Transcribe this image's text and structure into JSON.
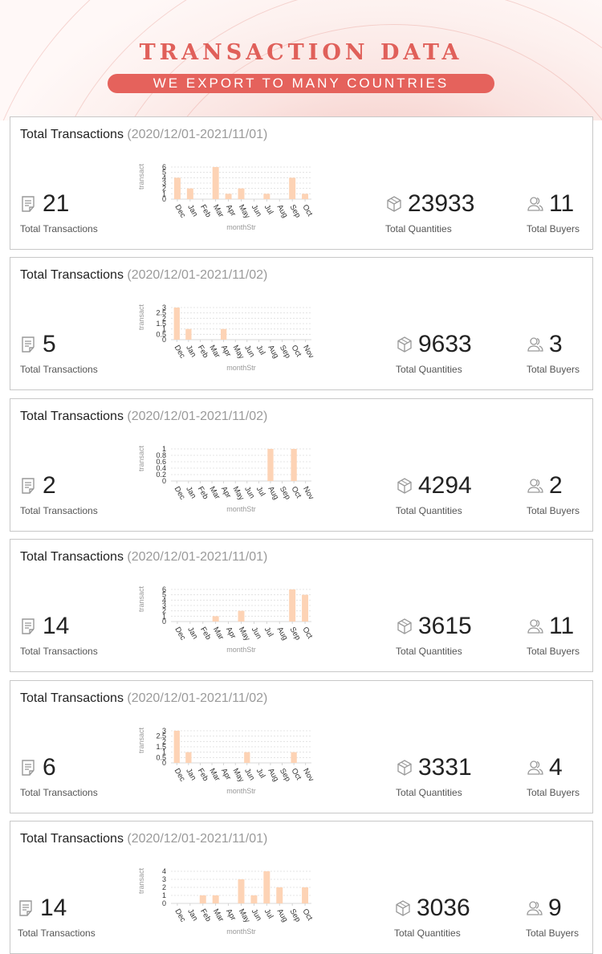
{
  "header": {
    "title": "TRANSACTION DATA",
    "subtitle": "WE EXPORT TO MANY COUNTRIES"
  },
  "colors": {
    "accent": "#e5625c",
    "bar": "#fdd3b5",
    "grid": "#dddddd"
  },
  "labels": {
    "transactions": "Total Transactions",
    "quantities": "Total Quantities",
    "buyers": "Total Buyers",
    "y_axis": "transact",
    "x_axis": "monthStr"
  },
  "cards": [
    {
      "title": "Total Transactions",
      "range": "(2020/12/01-2021/11/01)",
      "transactions": "21",
      "quantities": "23933",
      "buyers": "11"
    },
    {
      "title": "Total Transactions",
      "range": "(2020/12/01-2021/11/02)",
      "transactions": "5",
      "quantities": "9633",
      "buyers": "3"
    },
    {
      "title": "Total Transactions",
      "range": "(2020/12/01-2021/11/02)",
      "transactions": "2",
      "quantities": "4294",
      "buyers": "2"
    },
    {
      "title": "Total Transactions",
      "range": "(2020/12/01-2021/11/01)",
      "transactions": "14",
      "quantities": "3615",
      "buyers": "11"
    },
    {
      "title": "Total Transactions",
      "range": "(2020/12/01-2021/11/02)",
      "transactions": "6",
      "quantities": "3331",
      "buyers": "4"
    },
    {
      "title": "Total Transactions",
      "range": "(2020/12/01-2021/11/01)",
      "transactions": "14",
      "quantities": "3036",
      "buyers": "9"
    }
  ],
  "chart_data": [
    {
      "type": "bar",
      "title": "",
      "xlabel": "monthStr",
      "ylabel": "transact",
      "grid": true,
      "categories": [
        "Dec",
        "Jan",
        "Feb",
        "Mar",
        "Apr",
        "May",
        "Jun",
        "Jul",
        "Aug",
        "Sep",
        "Oct"
      ],
      "values": [
        4,
        2,
        0,
        6,
        1,
        2,
        0,
        1,
        0,
        4,
        1
      ],
      "yticks": [
        "0",
        "1",
        "2",
        "3",
        "4",
        "5",
        "6"
      ],
      "ylim": [
        0,
        6
      ]
    },
    {
      "type": "bar",
      "title": "",
      "xlabel": "monthStr",
      "ylabel": "transact",
      "grid": true,
      "categories": [
        "Dec",
        "Jan",
        "Feb",
        "Mar",
        "Apr",
        "May",
        "Jun",
        "Jul",
        "Aug",
        "Sep",
        "Oct",
        "Nov"
      ],
      "values": [
        3,
        1,
        0,
        0,
        1,
        0,
        0,
        0,
        0,
        0,
        0,
        0
      ],
      "yticks": [
        "0",
        "0.5",
        "1",
        "1.5",
        "2",
        "2.5",
        "3"
      ],
      "ylim": [
        0,
        3
      ]
    },
    {
      "type": "bar",
      "title": "",
      "xlabel": "monthStr",
      "ylabel": "transact",
      "grid": true,
      "categories": [
        "Dec",
        "Jan",
        "Feb",
        "Mar",
        "Apr",
        "May",
        "Jun",
        "Jul",
        "Aug",
        "Sep",
        "Oct",
        "Nov"
      ],
      "values": [
        0,
        0,
        0,
        0,
        0,
        0,
        0,
        0,
        1,
        0,
        1,
        0
      ],
      "yticks": [
        "0",
        "0.2",
        "0.4",
        "0.6",
        "0.8",
        "1"
      ],
      "ylim": [
        0,
        1
      ]
    },
    {
      "type": "bar",
      "title": "",
      "xlabel": "monthStr",
      "ylabel": "transact",
      "grid": true,
      "categories": [
        "Dec",
        "Jan",
        "Feb",
        "Mar",
        "Apr",
        "May",
        "Jun",
        "Jul",
        "Aug",
        "Sep",
        "Oct"
      ],
      "values": [
        0,
        0,
        0,
        1,
        0,
        2,
        0,
        0,
        0,
        6,
        5
      ],
      "yticks": [
        "0",
        "1",
        "2",
        "3",
        "4",
        "5",
        "6"
      ],
      "ylim": [
        0,
        6
      ]
    },
    {
      "type": "bar",
      "title": "",
      "xlabel": "monthStr",
      "ylabel": "transact",
      "grid": true,
      "categories": [
        "Dec",
        "Jan",
        "Feb",
        "Mar",
        "Apr",
        "May",
        "Jun",
        "Jul",
        "Aug",
        "Sep",
        "Oct",
        "Nov"
      ],
      "values": [
        3,
        1,
        0,
        0,
        0,
        0,
        1,
        0,
        0,
        0,
        1,
        0
      ],
      "yticks": [
        "0",
        "0.5",
        "1",
        "1.5",
        "2",
        "2.5",
        "3"
      ],
      "ylim": [
        0,
        3
      ]
    },
    {
      "type": "bar",
      "title": "",
      "xlabel": "monthStr",
      "ylabel": "transact",
      "grid": true,
      "categories": [
        "Dec",
        "Jan",
        "Feb",
        "Mar",
        "Apr",
        "May",
        "Jun",
        "Jul",
        "Aug",
        "Sep",
        "Oct"
      ],
      "values": [
        0,
        0,
        1,
        1,
        0,
        3,
        1,
        4,
        2,
        0,
        2
      ],
      "yticks": [
        "0",
        "1",
        "2",
        "3",
        "4"
      ],
      "ylim": [
        0,
        4
      ]
    }
  ]
}
